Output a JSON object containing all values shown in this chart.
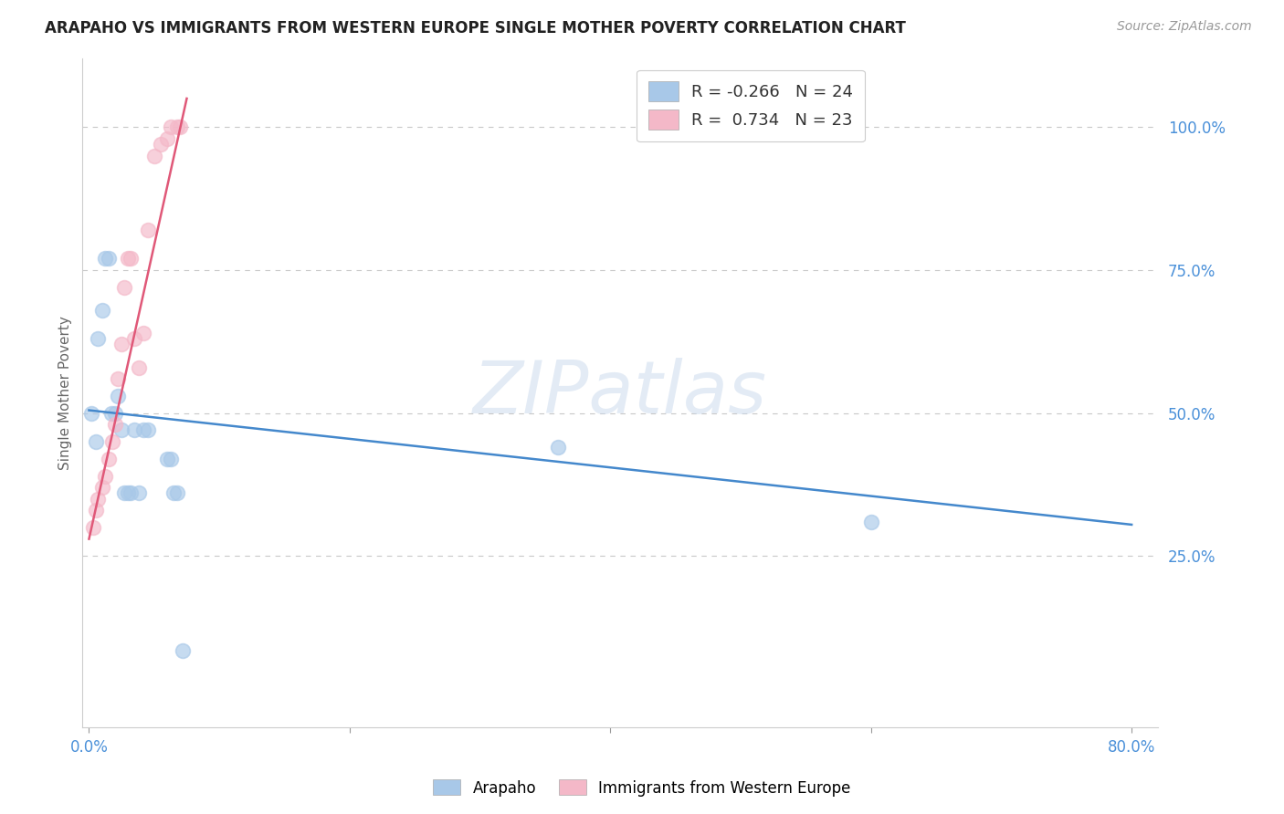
{
  "title": "ARAPAHO VS IMMIGRANTS FROM WESTERN EUROPE SINGLE MOTHER POVERTY CORRELATION CHART",
  "source": "Source: ZipAtlas.com",
  "ylabel": "Single Mother Poverty",
  "xlim": [
    -0.005,
    0.82
  ],
  "ylim": [
    -0.05,
    1.12
  ],
  "x_ticks": [
    0.0,
    0.2,
    0.4,
    0.6,
    0.8
  ],
  "x_tick_labels": [
    "0.0%",
    "",
    "",
    "",
    "80.0%"
  ],
  "y_ticks": [
    0.25,
    0.5,
    0.75,
    1.0
  ],
  "y_tick_labels": [
    "25.0%",
    "50.0%",
    "75.0%",
    "100.0%"
  ],
  "arapaho_x": [
    0.002,
    0.005,
    0.007,
    0.01,
    0.012,
    0.015,
    0.017,
    0.02,
    0.022,
    0.025,
    0.027,
    0.03,
    0.032,
    0.035,
    0.038,
    0.042,
    0.045,
    0.06,
    0.063,
    0.065,
    0.068,
    0.072,
    0.36,
    0.6
  ],
  "arapaho_y": [
    0.5,
    0.45,
    0.63,
    0.68,
    0.77,
    0.77,
    0.5,
    0.5,
    0.53,
    0.47,
    0.36,
    0.36,
    0.36,
    0.47,
    0.36,
    0.47,
    0.47,
    0.42,
    0.42,
    0.36,
    0.36,
    0.085,
    0.44,
    0.31
  ],
  "western_europe_x": [
    0.003,
    0.005,
    0.007,
    0.01,
    0.012,
    0.015,
    0.018,
    0.02,
    0.022,
    0.025,
    0.027,
    0.03,
    0.032,
    0.035,
    0.038,
    0.042,
    0.045,
    0.05,
    0.055,
    0.06,
    0.063,
    0.068,
    0.07
  ],
  "western_europe_y": [
    0.3,
    0.33,
    0.35,
    0.37,
    0.39,
    0.42,
    0.45,
    0.48,
    0.56,
    0.62,
    0.72,
    0.77,
    0.77,
    0.63,
    0.58,
    0.64,
    0.82,
    0.95,
    0.97,
    0.98,
    1.0,
    1.0,
    1.0
  ],
  "arapaho_R": -0.266,
  "arapaho_N": 24,
  "western_europe_R": 0.734,
  "western_europe_N": 23,
  "blue_color": "#a8c8e8",
  "pink_color": "#f4b8c8",
  "blue_line_color": "#4488cc",
  "pink_line_color": "#e05878",
  "blue_text_color": "#4a90d9",
  "watermark": "ZIPatlas",
  "background_color": "#ffffff",
  "grid_color": "#c8c8c8"
}
